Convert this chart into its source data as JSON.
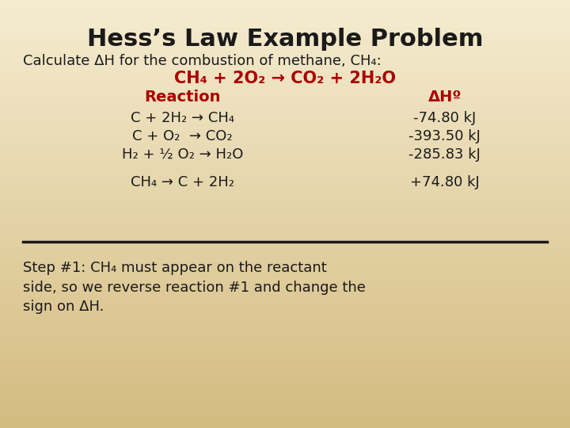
{
  "title": "Hess’s Law Example Problem",
  "bg_top": "#f5ecd0",
  "bg_bottom": "#cdb97a",
  "title_color": "#1a1a1a",
  "title_fontsize": 22,
  "body_fontsize": 13,
  "red_color": "#aa0000",
  "black_color": "#1a1a1a",
  "font_family": "Comic Sans MS",
  "line1": "Calculate ΔH for the combustion of methane, CH₄:",
  "line2": "CH₄ + 2O₂ → CO₂ + 2H₂O",
  "col_header_left": "Reaction",
  "col_header_right": "ΔHº",
  "reactions": [
    "C + 2H₂ → CH₄",
    "C + O₂  → CO₂",
    "H₂ + ½ O₂ → H₂O"
  ],
  "enthalpies": [
    "-74.80 kJ",
    "-393.50 kJ",
    "-285.83 kJ"
  ],
  "reversed_reaction": "CH₄ → C + 2H₂",
  "reversed_enthalpy": "+74.80 kJ",
  "step_text_line1": "Step #1: CH₄ must appear on the reactant",
  "step_text_line2": "side, so we reverse reaction #1 and change the",
  "step_text_line3": "sign on ΔH."
}
